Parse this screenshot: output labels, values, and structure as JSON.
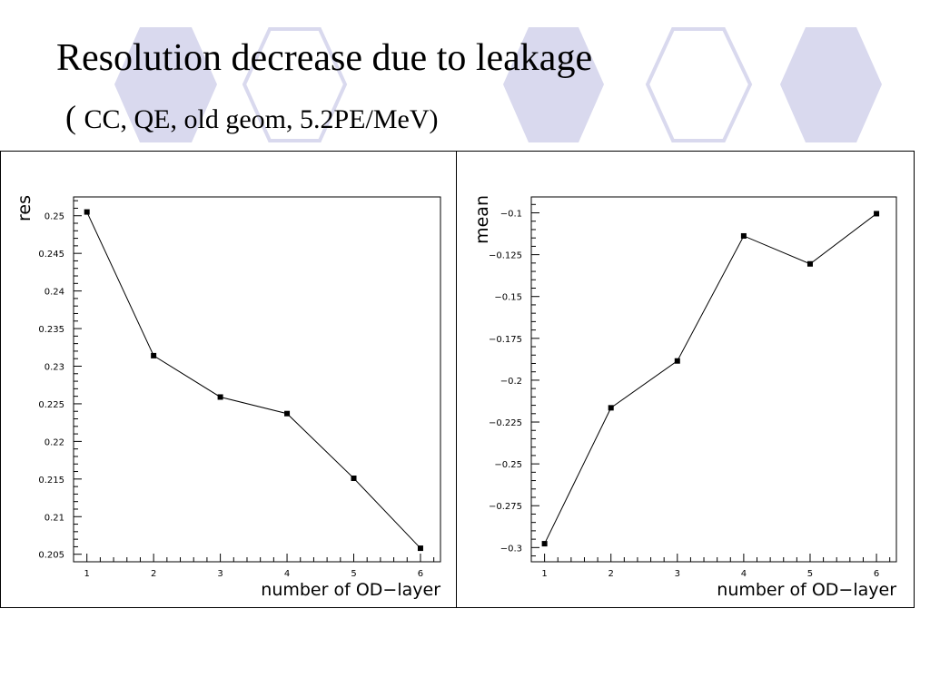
{
  "slide": {
    "title": "Resolution decrease due to leakage",
    "subtitle_paren": "(",
    "subtitle_rest": "CC, QE, old geom, 5.2PE/MeV)"
  },
  "colors": {
    "hexagon_fill": "#d9d9ee",
    "hexagon_outline": "#d9d9ee",
    "axis": "#000000",
    "line": "#000000"
  },
  "chart_data": [
    {
      "type": "line",
      "x": [
        1,
        2,
        3,
        4,
        5,
        6
      ],
      "y": [
        0.2505,
        0.2314,
        0.2259,
        0.2237,
        0.2151,
        0.2058
      ],
      "xlabel": "number of OD−layer",
      "ylabel": "res",
      "xlim": [
        0.8,
        6.3
      ],
      "ylim": [
        0.204,
        0.2525
      ],
      "xticks": [
        1,
        2,
        3,
        4,
        5,
        6
      ],
      "xtick_labels": [
        "1",
        "2",
        "3",
        "4",
        "5",
        "6"
      ],
      "yticks": [
        0.205,
        0.21,
        0.215,
        0.22,
        0.225,
        0.23,
        0.235,
        0.24,
        0.245,
        0.25
      ],
      "ytick_labels": [
        "0.205",
        "0.21",
        "0.215",
        "0.22",
        "0.225",
        "0.23",
        "0.235",
        "0.24",
        "0.245",
        "0.25"
      ],
      "marker": "square",
      "grid": false,
      "legend": "none"
    },
    {
      "type": "line",
      "x": [
        1,
        2,
        3,
        4,
        5,
        6
      ],
      "y": [
        -0.2977,
        -0.2165,
        -0.1885,
        -0.1138,
        -0.1305,
        -0.1005
      ],
      "xlabel": "number of OD−layer",
      "ylabel": "mean",
      "xlim": [
        0.8,
        6.3
      ],
      "ylim": [
        -0.3085,
        -0.0905
      ],
      "xticks": [
        1,
        2,
        3,
        4,
        5,
        6
      ],
      "xtick_labels": [
        "1",
        "2",
        "3",
        "4",
        "5",
        "6"
      ],
      "yticks": [
        -0.3,
        -0.275,
        -0.25,
        -0.225,
        -0.2,
        -0.175,
        -0.15,
        -0.125,
        -0.1
      ],
      "ytick_labels": [
        "−0.3",
        "−0.275",
        "−0.25",
        "−0.225",
        "−0.2",
        "−0.175",
        "−0.15",
        "−0.125",
        "−0.1"
      ],
      "marker": "square",
      "grid": false,
      "legend": "none"
    }
  ]
}
